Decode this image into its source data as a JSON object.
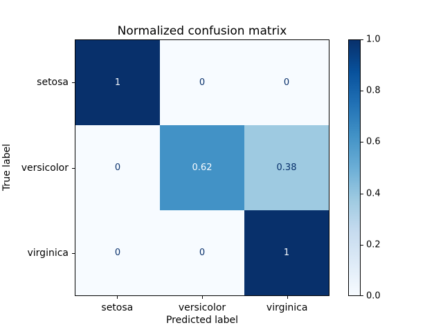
{
  "chart_data": {
    "type": "heatmap",
    "title": "Normalized confusion matrix",
    "xlabel": "Predicted label",
    "ylabel": "True label",
    "x_categories": [
      "setosa",
      "versicolor",
      "virginica"
    ],
    "y_categories": [
      "setosa",
      "versicolor",
      "virginica"
    ],
    "values": [
      [
        1,
        0,
        0
      ],
      [
        0,
        0.62,
        0.38
      ],
      [
        0,
        0,
        1
      ]
    ],
    "value_labels": [
      [
        "1",
        "0",
        "0"
      ],
      [
        "0",
        "0.62",
        "0.38"
      ],
      [
        "0",
        "0",
        "1"
      ]
    ],
    "cell_colors": [
      [
        "#08306b",
        "#f7fbff",
        "#f7fbff"
      ],
      [
        "#f7fbff",
        "#4292c6",
        "#9ecae1"
      ],
      [
        "#f7fbff",
        "#f7fbff",
        "#08306b"
      ]
    ],
    "cell_text_colors": [
      [
        "#f7fbff",
        "#08306b",
        "#08306b"
      ],
      [
        "#08306b",
        "#f7fbff",
        "#08306b"
      ],
      [
        "#08306b",
        "#08306b",
        "#f7fbff"
      ]
    ],
    "colormap": "Blues",
    "colormap_stops": [
      "#f7fbff",
      "#deebf7",
      "#c6dbef",
      "#9ecae1",
      "#6baed6",
      "#4292c6",
      "#2171b5",
      "#08519c",
      "#08306b"
    ],
    "vmin": 0,
    "vmax": 1,
    "colorbar": {
      "tick_labels": [
        "1.0",
        "0.8",
        "0.6",
        "0.4",
        "0.2",
        "0.0"
      ],
      "tick_values": [
        1.0,
        0.8,
        0.6,
        0.4,
        0.2,
        0.0
      ]
    },
    "grid": false,
    "legend": "colorbar-right"
  }
}
